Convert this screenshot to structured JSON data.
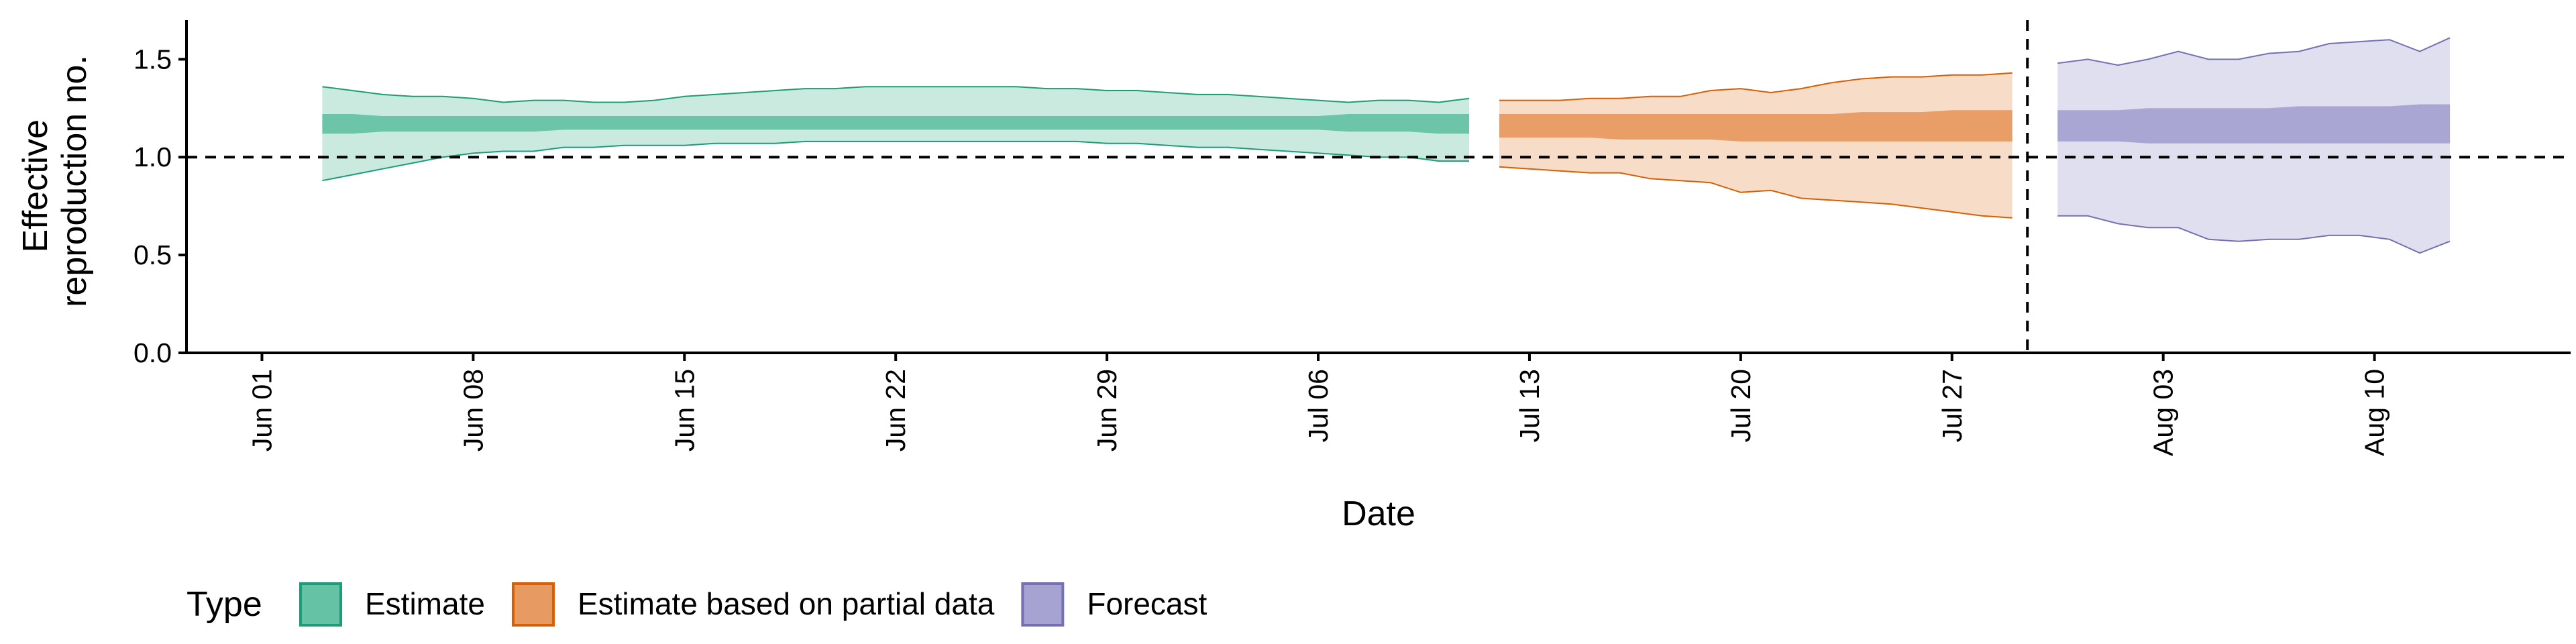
{
  "chart_data": {
    "type": "area",
    "title": "",
    "xlabel": "Date",
    "ylabel_lines": [
      "Effective",
      "reproduction no."
    ],
    "ylim": [
      0,
      1.7
    ],
    "yticks": [
      0.0,
      0.5,
      1.0,
      1.5
    ],
    "ytick_labels": [
      "0.0",
      "0.5",
      "1.0",
      "1.5"
    ],
    "x_day_range": [
      -2.5,
      76.5
    ],
    "x_day_origin": "Jun 01",
    "xticks": [
      {
        "day": 0,
        "label": "Jun 01"
      },
      {
        "day": 7,
        "label": "Jun 08"
      },
      {
        "day": 14,
        "label": "Jun 15"
      },
      {
        "day": 21,
        "label": "Jun 22"
      },
      {
        "day": 28,
        "label": "Jun 29"
      },
      {
        "day": 35,
        "label": "Jul 06"
      },
      {
        "day": 42,
        "label": "Jul 13"
      },
      {
        "day": 49,
        "label": "Jul 20"
      },
      {
        "day": 56,
        "label": "Jul 27"
      },
      {
        "day": 63,
        "label": "Aug 03"
      },
      {
        "day": 70,
        "label": "Aug 10"
      }
    ],
    "reference_hline": 1.0,
    "reference_vline_day": 58.5,
    "grid": false,
    "legend_position": "bottom",
    "legend_title": "Type",
    "series": [
      {
        "name": "Estimate",
        "color": "#1b9e77",
        "fill": "#66c2a5",
        "days": [
          2,
          3,
          4,
          5,
          6,
          7,
          8,
          9,
          10,
          11,
          12,
          13,
          14,
          15,
          16,
          17,
          18,
          19,
          20,
          21,
          22,
          23,
          24,
          25,
          26,
          27,
          28,
          29,
          30,
          31,
          32,
          33,
          34,
          35,
          36,
          37,
          38,
          39,
          40
        ],
        "lower90": [
          0.88,
          0.91,
          0.94,
          0.97,
          1.0,
          1.02,
          1.03,
          1.03,
          1.05,
          1.05,
          1.06,
          1.06,
          1.06,
          1.07,
          1.07,
          1.07,
          1.08,
          1.08,
          1.08,
          1.08,
          1.08,
          1.08,
          1.08,
          1.08,
          1.08,
          1.08,
          1.07,
          1.07,
          1.06,
          1.05,
          1.05,
          1.04,
          1.03,
          1.02,
          1.01,
          1.0,
          1.0,
          0.98,
          0.98
        ],
        "lower50": [
          1.12,
          1.12,
          1.13,
          1.13,
          1.13,
          1.13,
          1.13,
          1.13,
          1.14,
          1.14,
          1.14,
          1.14,
          1.14,
          1.14,
          1.14,
          1.14,
          1.14,
          1.14,
          1.14,
          1.14,
          1.14,
          1.14,
          1.14,
          1.14,
          1.14,
          1.14,
          1.14,
          1.14,
          1.14,
          1.14,
          1.14,
          1.14,
          1.14,
          1.14,
          1.13,
          1.13,
          1.13,
          1.12,
          1.12
        ],
        "upper50": [
          1.22,
          1.22,
          1.21,
          1.21,
          1.21,
          1.21,
          1.21,
          1.21,
          1.21,
          1.21,
          1.21,
          1.21,
          1.21,
          1.21,
          1.21,
          1.21,
          1.21,
          1.21,
          1.21,
          1.21,
          1.21,
          1.21,
          1.21,
          1.21,
          1.21,
          1.21,
          1.21,
          1.21,
          1.21,
          1.21,
          1.21,
          1.21,
          1.21,
          1.21,
          1.22,
          1.22,
          1.22,
          1.22,
          1.22
        ],
        "upper90": [
          1.36,
          1.34,
          1.32,
          1.31,
          1.31,
          1.3,
          1.28,
          1.29,
          1.29,
          1.28,
          1.28,
          1.29,
          1.31,
          1.32,
          1.33,
          1.34,
          1.35,
          1.35,
          1.36,
          1.36,
          1.36,
          1.36,
          1.36,
          1.36,
          1.35,
          1.35,
          1.34,
          1.34,
          1.33,
          1.32,
          1.32,
          1.31,
          1.3,
          1.29,
          1.28,
          1.29,
          1.29,
          1.28,
          1.3
        ]
      },
      {
        "name": "Estimate based on partial data",
        "color": "#d95f02",
        "fill": "#e79a61",
        "days": [
          41,
          42,
          43,
          44,
          45,
          46,
          47,
          48,
          49,
          50,
          51,
          52,
          53,
          54,
          55,
          56,
          57,
          58
        ],
        "lower90": [
          0.95,
          0.94,
          0.93,
          0.92,
          0.92,
          0.89,
          0.88,
          0.87,
          0.82,
          0.83,
          0.79,
          0.78,
          0.77,
          0.76,
          0.74,
          0.72,
          0.7,
          0.69
        ],
        "lower50": [
          1.1,
          1.1,
          1.1,
          1.1,
          1.09,
          1.09,
          1.09,
          1.09,
          1.08,
          1.08,
          1.08,
          1.08,
          1.08,
          1.08,
          1.08,
          1.08,
          1.08,
          1.08
        ],
        "upper50": [
          1.22,
          1.22,
          1.22,
          1.22,
          1.22,
          1.22,
          1.22,
          1.22,
          1.22,
          1.22,
          1.22,
          1.22,
          1.23,
          1.23,
          1.23,
          1.24,
          1.24,
          1.24
        ],
        "upper90": [
          1.29,
          1.29,
          1.29,
          1.3,
          1.3,
          1.31,
          1.31,
          1.34,
          1.35,
          1.33,
          1.35,
          1.38,
          1.4,
          1.41,
          1.41,
          1.42,
          1.42,
          1.43
        ]
      },
      {
        "name": "Forecast",
        "color": "#7570b3",
        "fill": "#a6a2d1",
        "days": [
          59.5,
          60.5,
          61.5,
          62.5,
          63.5,
          64.5,
          65.5,
          66.5,
          67.5,
          68.5,
          69.5,
          70.5,
          71.5,
          72.5
        ],
        "lower90": [
          0.7,
          0.7,
          0.66,
          0.64,
          0.64,
          0.58,
          0.57,
          0.58,
          0.58,
          0.6,
          0.6,
          0.58,
          0.51,
          0.57
        ],
        "lower50": [
          1.08,
          1.08,
          1.08,
          1.07,
          1.07,
          1.07,
          1.07,
          1.07,
          1.07,
          1.07,
          1.07,
          1.07,
          1.07,
          1.07
        ],
        "upper50": [
          1.24,
          1.24,
          1.24,
          1.25,
          1.25,
          1.25,
          1.25,
          1.25,
          1.26,
          1.26,
          1.26,
          1.26,
          1.27,
          1.27
        ],
        "upper90": [
          1.48,
          1.5,
          1.47,
          1.5,
          1.54,
          1.5,
          1.5,
          1.53,
          1.54,
          1.58,
          1.59,
          1.6,
          1.54,
          1.61
        ]
      }
    ]
  }
}
